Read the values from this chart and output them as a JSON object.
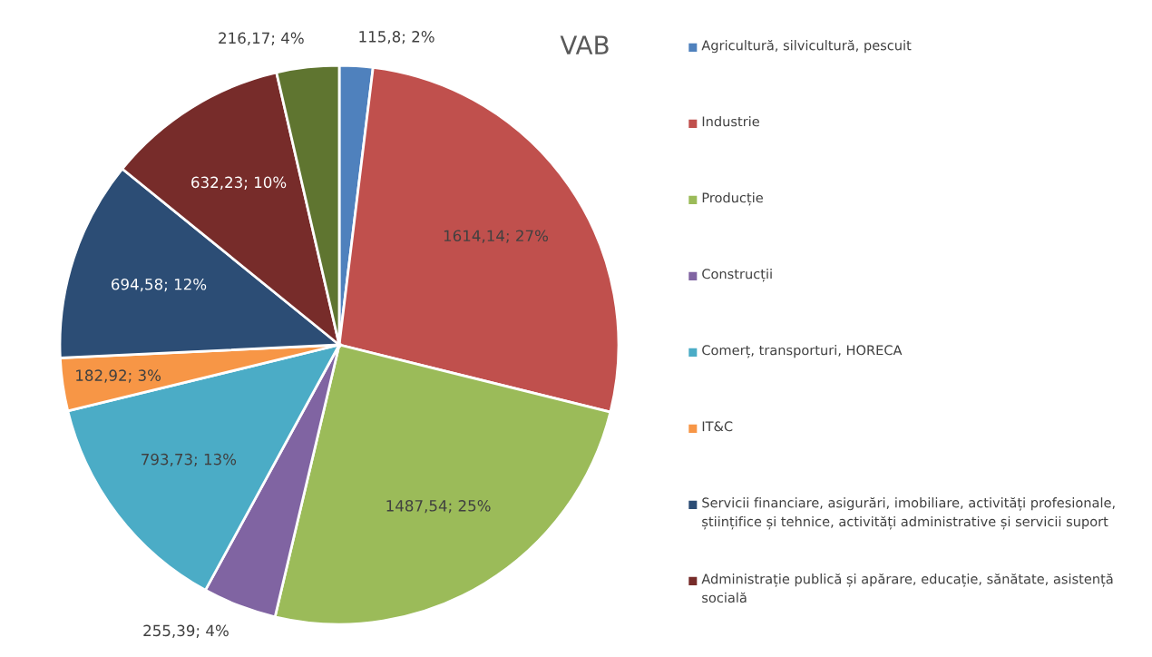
{
  "chart_data": {
    "type": "pie",
    "title": "VAB",
    "categories": [
      "Agricultură, silvicultură, pescuit",
      "Industrie",
      "Producție",
      "Construcții",
      "Comerț, transporturi, HORECA",
      "IT&C",
      "Servicii financiare, asigurări, imobiliare, activități profesionale, științifice și tehnice, activități administrative și servicii suport",
      "Administrație publică și apărare, educație, sănătate, asistență socială",
      null
    ],
    "values": [
      115.8,
      1614.14,
      1487.54,
      255.39,
      793.73,
      182.92,
      694.58,
      632.23,
      216.17
    ],
    "value_labels": [
      "115,8; 2%",
      "1614,14; 27%",
      "1487,54; 25%",
      "255,39; 4%",
      "793,73; 13%",
      "182,92; 3%",
      "694,58; 12%",
      "632,23; 10%",
      "216,17; 4%"
    ],
    "colors": [
      "#4f81bd",
      "#c0504d",
      "#9bbb59",
      "#8064a2",
      "#4bacc6",
      "#f79646",
      "#2c4d75",
      "#772c2a",
      "#5f7530"
    ],
    "legend": "right"
  }
}
